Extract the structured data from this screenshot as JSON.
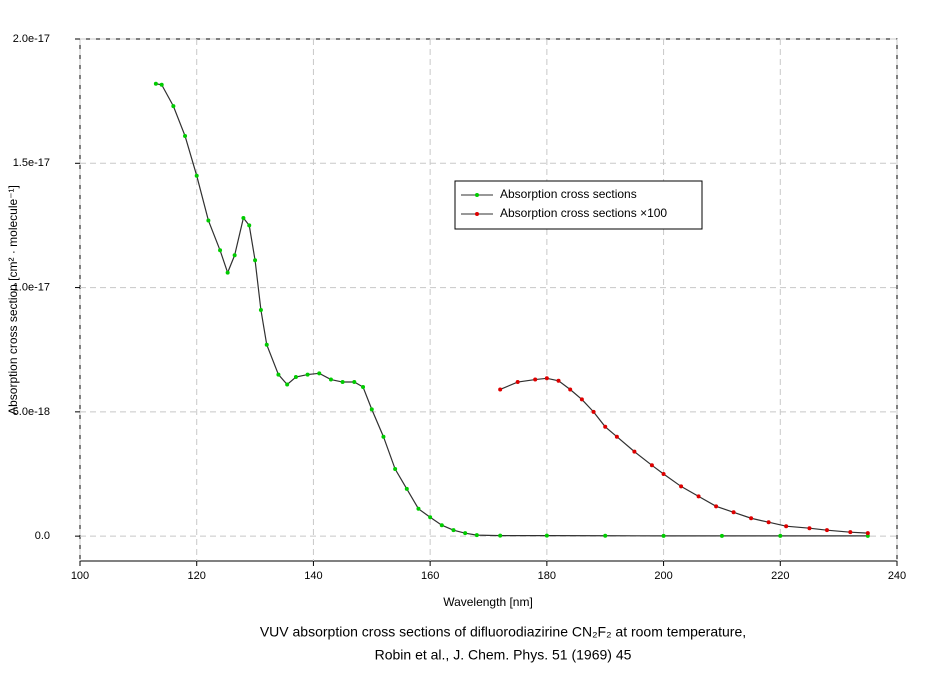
{
  "chart_data": {
    "type": "line",
    "xlabel": "Wavelength [nm]",
    "ylabel": "Absorption cross section [cm² · molecule⁻¹]",
    "caption": [
      "VUV absorption cross sections of difluorodiazirine CN₂F₂ at room temperature,",
      "Robin et al., J. Chem. Phys. 51 (1969) 45"
    ],
    "xlim": [
      100,
      240
    ],
    "xticks": [
      100,
      120,
      140,
      160,
      180,
      200,
      220,
      240
    ],
    "ylim": [
      -1e-18,
      2e-17
    ],
    "yticks": [
      {
        "value": 0,
        "label": "0.0"
      },
      {
        "value": 5e-18,
        "label": "5.0e-18"
      },
      {
        "value": 1e-17,
        "label": "1.0e-17"
      },
      {
        "value": 1.5e-17,
        "label": "1.5e-17"
      },
      {
        "value": 2e-17,
        "label": "2.0e-17"
      }
    ],
    "grid": true,
    "legend": "upper-middle",
    "series": [
      {
        "name": "Absorption cross sections",
        "color": "#00cc00",
        "line_color": "#303030",
        "x": [
          113,
          114,
          116,
          118,
          120,
          122,
          124,
          125.3,
          126.5,
          128,
          129,
          130,
          131,
          132,
          134,
          135.5,
          137,
          139,
          141,
          143,
          145,
          147,
          148.5,
          150,
          152,
          154,
          156,
          158,
          160,
          162,
          164,
          166,
          168,
          172,
          180,
          190,
          200,
          210,
          220,
          235
        ],
        "values": [
          1.82e-17,
          1.816e-17,
          1.73e-17,
          1.61e-17,
          1.45e-17,
          1.27e-17,
          1.15e-17,
          1.06e-17,
          1.13e-17,
          1.28e-17,
          1.25e-17,
          1.11e-17,
          9.1e-18,
          7.7e-18,
          6.5e-18,
          6.1e-18,
          6.4e-18,
          6.5e-18,
          6.55e-18,
          6.3e-18,
          6.2e-18,
          6.2e-18,
          6e-18,
          5.1e-18,
          4e-18,
          2.7e-18,
          1.9e-18,
          1.1e-18,
          7.6e-19,
          4.4e-19,
          2.4e-19,
          1.2e-19,
          4e-20,
          2e-20,
          2e-20,
          1.5e-20,
          1e-20,
          1e-20,
          1e-20,
          1e-20
        ]
      },
      {
        "name": "Absorption cross sections ×100",
        "color": "#dd0000",
        "line_color": "#303030",
        "x": [
          172,
          175,
          178,
          180,
          182,
          184,
          186,
          188,
          190,
          192,
          195,
          198,
          200,
          203,
          206,
          209,
          212,
          215,
          218,
          221,
          225,
          228,
          232,
          235
        ],
        "values": [
          5.9e-18,
          6.2e-18,
          6.3e-18,
          6.35e-18,
          6.25e-18,
          5.9e-18,
          5.5e-18,
          5e-18,
          4.4e-18,
          4e-18,
          3.4e-18,
          2.85e-18,
          2.5e-18,
          2e-18,
          1.6e-18,
          1.2e-18,
          9.6e-19,
          7.2e-19,
          5.6e-19,
          4e-19,
          3.2e-19,
          2.4e-19,
          1.6e-19,
          1.2e-19
        ]
      }
    ]
  }
}
